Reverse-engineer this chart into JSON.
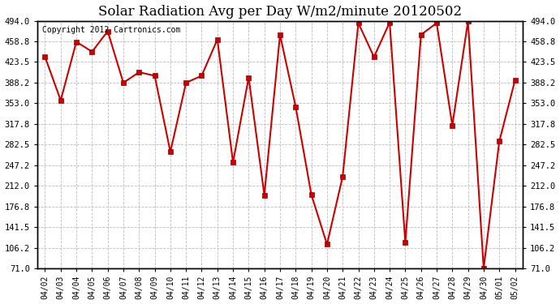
{
  "title": "Solar Radiation Avg per Day W/m2/minute 20120502",
  "copyright": "Copyright 2012 Cartronics.com",
  "labels": [
    "04/02",
    "04/03",
    "04/04",
    "04/05",
    "04/06",
    "04/07",
    "04/08",
    "04/09",
    "04/10",
    "04/11",
    "04/12",
    "04/13",
    "04/14",
    "04/15",
    "04/16",
    "04/17",
    "04/18",
    "04/19",
    "04/20",
    "04/21",
    "04/22",
    "04/23",
    "04/24",
    "04/25",
    "04/26",
    "04/27",
    "04/28",
    "04/29",
    "04/30",
    "05/01",
    "05/02"
  ],
  "values": [
    432,
    358,
    458,
    441,
    476,
    388,
    406,
    400,
    270,
    388,
    400,
    462,
    252,
    397,
    196,
    470,
    347,
    197,
    112,
    228,
    490,
    432,
    491,
    115,
    470,
    490,
    315,
    493,
    71,
    288,
    392
  ],
  "line_color": "#cc0000",
  "marker_color": "#cc0000",
  "bg_color": "#ffffff",
  "grid_color": "#bbbbbb",
  "ymin": 71.0,
  "ymax": 494.0,
  "yticks": [
    71.0,
    106.2,
    141.5,
    176.8,
    212.0,
    247.2,
    282.5,
    317.8,
    353.0,
    388.2,
    423.5,
    458.8,
    494.0
  ],
  "title_fontsize": 12,
  "copyright_fontsize": 7
}
